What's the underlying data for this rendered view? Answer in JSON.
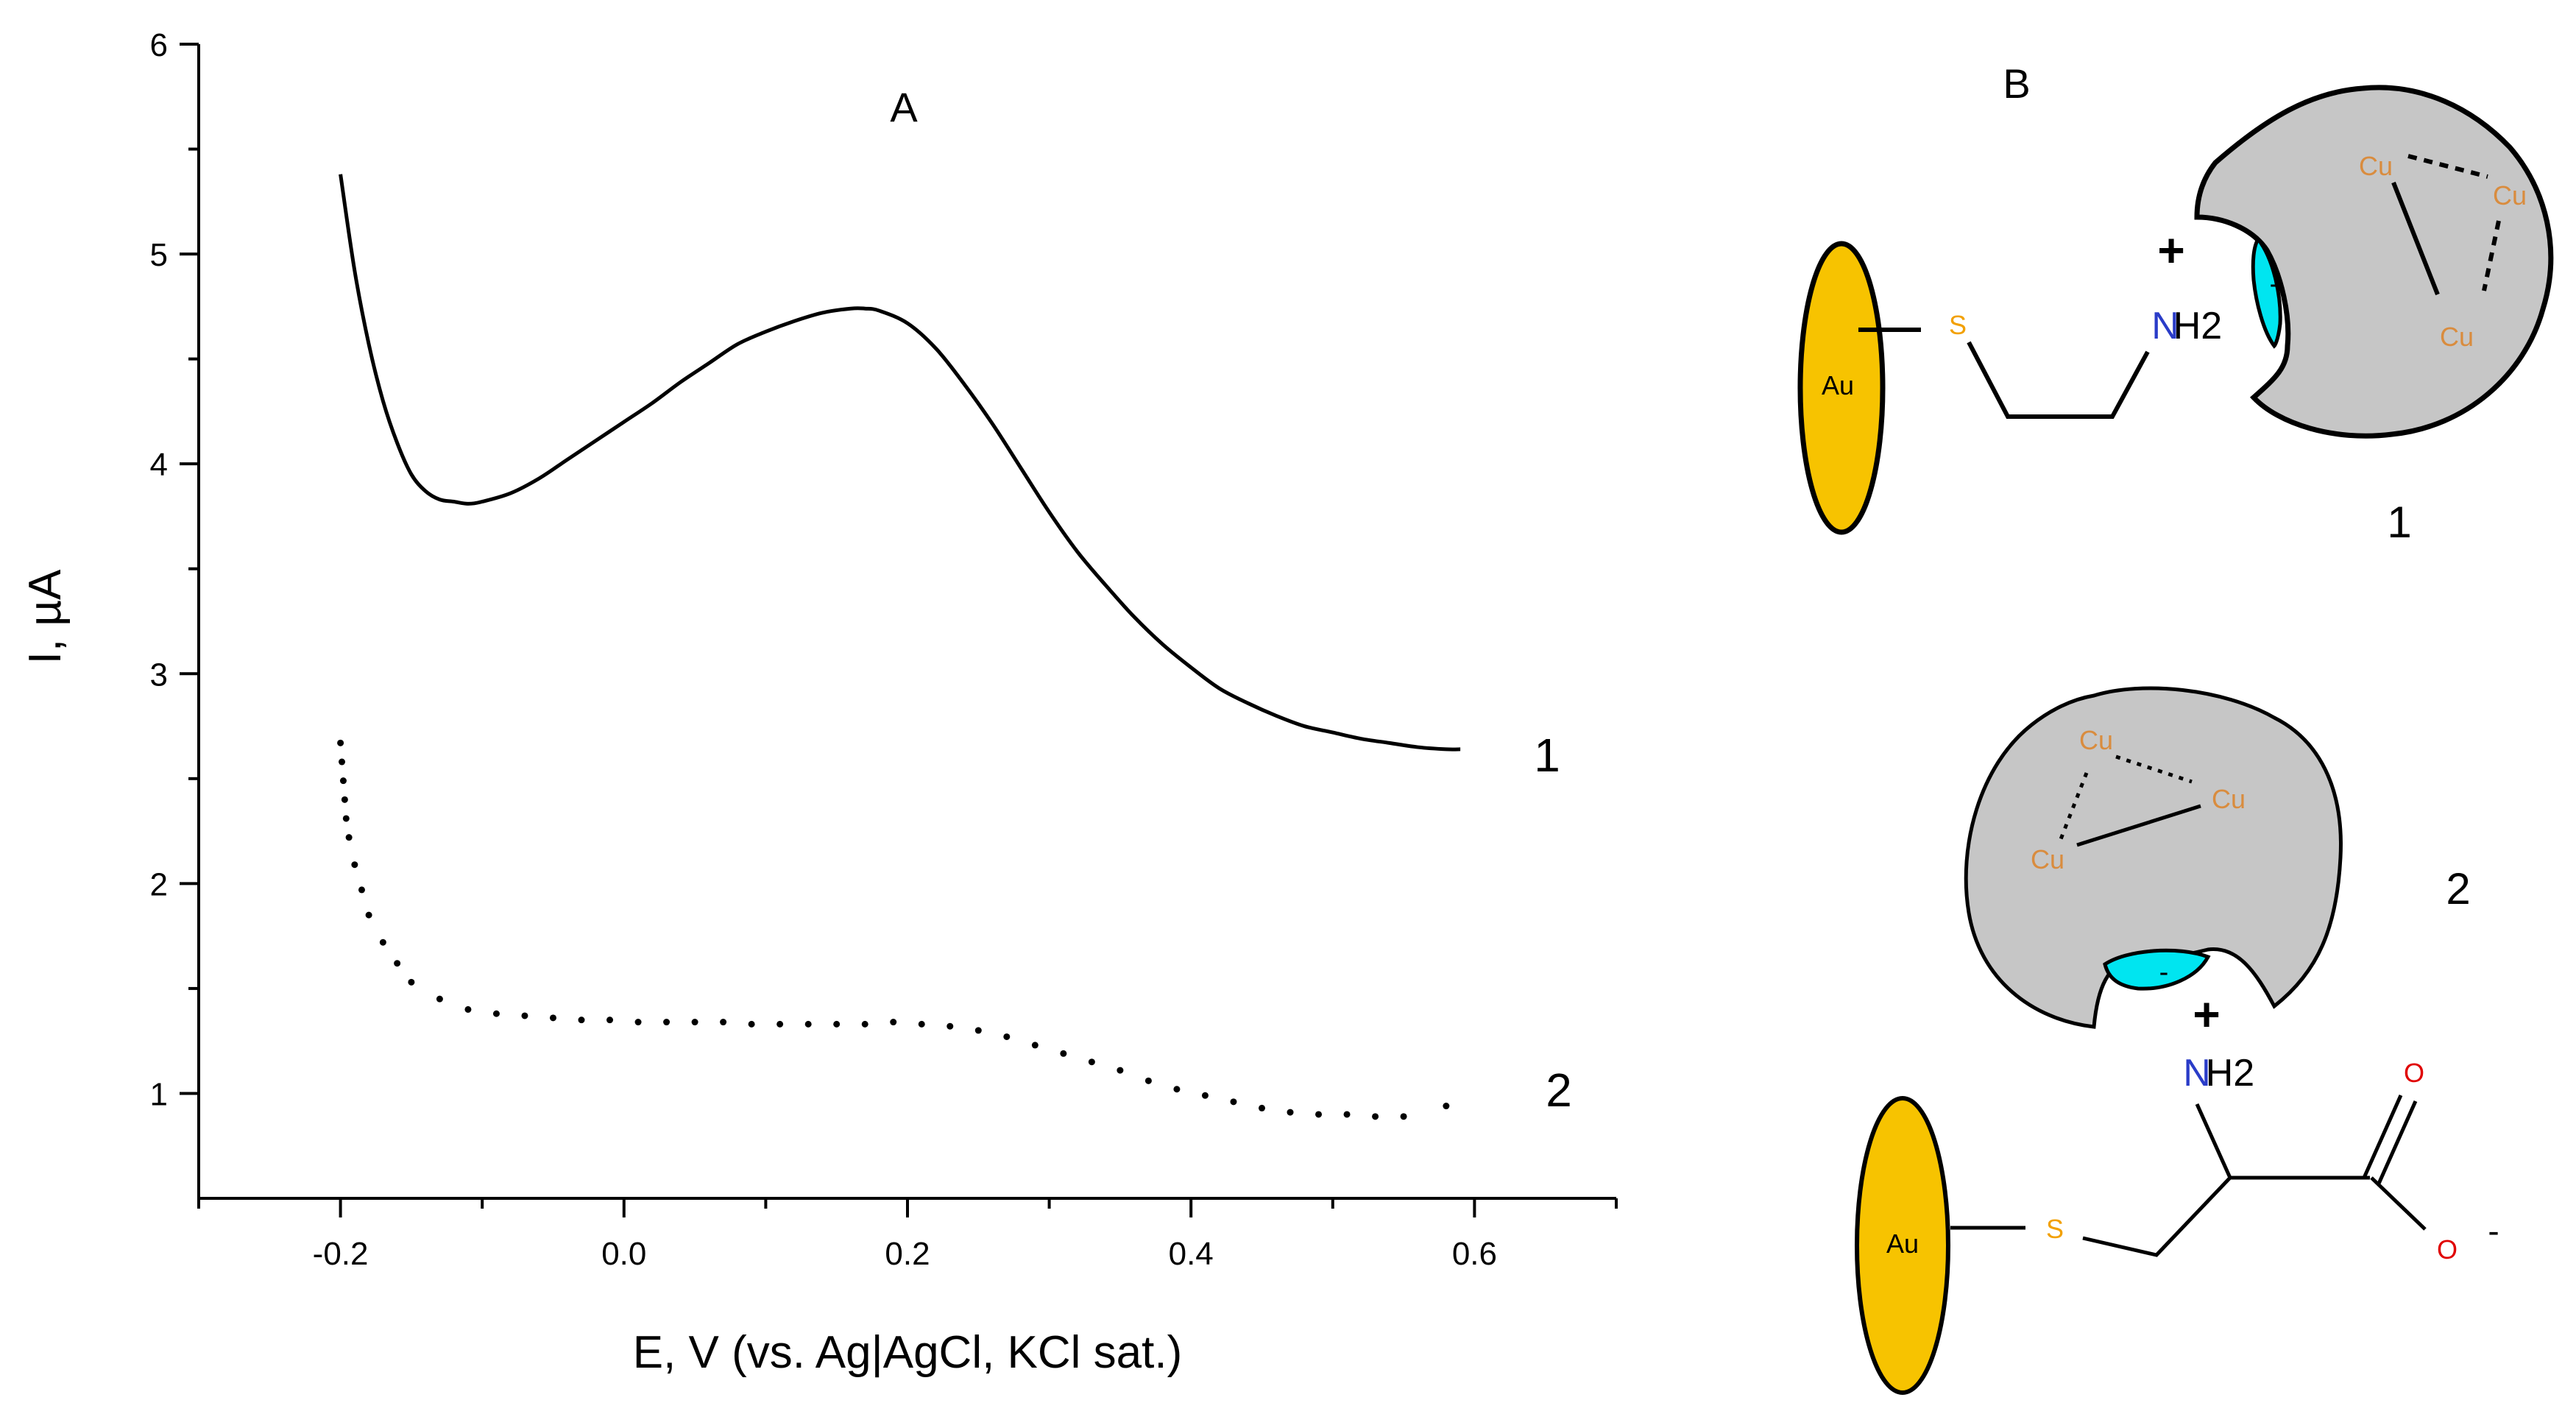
{
  "chart_data": [
    {
      "type": "line",
      "panel_label": "A",
      "xlabel": "E, V (vs. Ag|AgCl, KCl sat.)",
      "ylabel": "I, µA",
      "xlim": [
        -0.3,
        0.7
      ],
      "ylim": [
        0.5,
        6
      ],
      "x_ticks": [
        -0.2,
        0.0,
        0.2,
        0.4,
        0.6
      ],
      "x_tick_labels": [
        "-0.2",
        "0.0",
        "0.2",
        "0.4",
        "0.6"
      ],
      "y_ticks": [
        1,
        2,
        3,
        4,
        5,
        6
      ],
      "y_tick_labels": [
        "1",
        "2",
        "3",
        "4",
        "5",
        "6"
      ],
      "grid": false,
      "series": [
        {
          "name": "1",
          "style": "solid",
          "x": [
            -0.2,
            -0.19,
            -0.18,
            -0.17,
            -0.16,
            -0.15,
            -0.14,
            -0.13,
            -0.12,
            -0.11,
            -0.1,
            -0.08,
            -0.06,
            -0.04,
            -0.02,
            0.0,
            0.02,
            0.04,
            0.06,
            0.08,
            0.1,
            0.12,
            0.14,
            0.16,
            0.17,
            0.18,
            0.2,
            0.22,
            0.24,
            0.26,
            0.28,
            0.3,
            0.32,
            0.34,
            0.36,
            0.38,
            0.4,
            0.42,
            0.44,
            0.46,
            0.48,
            0.5,
            0.52,
            0.54,
            0.56,
            0.58,
            0.59
          ],
          "y": [
            5.38,
            4.92,
            4.57,
            4.3,
            4.1,
            3.95,
            3.87,
            3.83,
            3.82,
            3.81,
            3.82,
            3.86,
            3.93,
            4.02,
            4.11,
            4.2,
            4.29,
            4.39,
            4.48,
            4.57,
            4.63,
            4.68,
            4.72,
            4.74,
            4.74,
            4.73,
            4.67,
            4.55,
            4.38,
            4.19,
            3.98,
            3.77,
            3.58,
            3.42,
            3.27,
            3.14,
            3.03,
            2.93,
            2.86,
            2.8,
            2.75,
            2.72,
            2.69,
            2.67,
            2.65,
            2.64,
            2.64
          ]
        },
        {
          "name": "2",
          "style": "dotted",
          "x": [
            -0.2,
            -0.199,
            -0.198,
            -0.197,
            -0.196,
            -0.194,
            -0.19,
            -0.185,
            -0.18,
            -0.17,
            -0.16,
            -0.15,
            -0.13,
            -0.11,
            -0.09,
            -0.07,
            -0.05,
            -0.03,
            -0.01,
            0.01,
            0.03,
            0.05,
            0.07,
            0.09,
            0.11,
            0.13,
            0.15,
            0.17,
            0.19,
            0.21,
            0.23,
            0.25,
            0.27,
            0.29,
            0.31,
            0.33,
            0.35,
            0.37,
            0.39,
            0.41,
            0.43,
            0.45,
            0.47,
            0.49,
            0.51,
            0.53,
            0.55,
            0.58
          ],
          "y": [
            2.67,
            2.58,
            2.49,
            2.4,
            2.31,
            2.22,
            2.09,
            1.97,
            1.85,
            1.72,
            1.62,
            1.53,
            1.45,
            1.4,
            1.38,
            1.37,
            1.36,
            1.35,
            1.35,
            1.34,
            1.34,
            1.34,
            1.34,
            1.33,
            1.33,
            1.33,
            1.33,
            1.33,
            1.34,
            1.33,
            1.32,
            1.3,
            1.27,
            1.23,
            1.19,
            1.15,
            1.11,
            1.06,
            1.02,
            0.99,
            0.96,
            0.93,
            0.91,
            0.9,
            0.9,
            0.89,
            0.89,
            0.94
          ]
        }
      ],
      "series_labels": [
        "1",
        "2"
      ]
    }
  ],
  "scheme": {
    "panel_label": "B",
    "label_1": "1",
    "label_2": "2",
    "au": "Au",
    "s": "S",
    "n": "N",
    "h2": "H2",
    "plus": "+",
    "minus": "-",
    "cu": "Cu",
    "o": "O",
    "colors": {
      "gold": "#f7c300",
      "cyan": "#00e5f0",
      "protein": "#c6c6c6",
      "copper": "#d98c3e",
      "sulfur": "#f2a000",
      "nitrogen": "#2a3cc8",
      "oxygen": "#e00000"
    }
  }
}
